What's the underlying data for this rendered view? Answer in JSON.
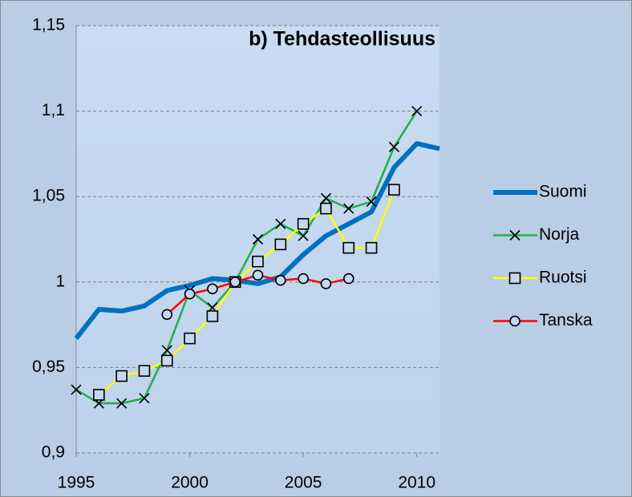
{
  "chart_data": {
    "type": "line",
    "title": "b) Tehdasteollisuus",
    "x": [
      1995,
      1996,
      1997,
      1998,
      1999,
      2000,
      2001,
      2002,
      2003,
      2004,
      2005,
      2006,
      2007,
      2008,
      2009,
      2010,
      2011
    ],
    "series": [
      {
        "name": "Suomi",
        "color": "#0070c0",
        "marker": "none",
        "width": 6,
        "values": [
          0.967,
          0.984,
          0.983,
          0.986,
          0.995,
          0.998,
          1.002,
          1.001,
          0.999,
          1.003,
          1.016,
          1.027,
          1.034,
          1.041,
          1.067,
          1.081,
          1.078
        ]
      },
      {
        "name": "Norja",
        "color": "#1fae4b",
        "marker": "x",
        "width": 2.5,
        "values": [
          0.937,
          0.929,
          0.929,
          0.932,
          0.96,
          0.995,
          0.985,
          1.0,
          1.025,
          1.034,
          1.027,
          1.049,
          1.043,
          1.047,
          1.079,
          1.1,
          null
        ]
      },
      {
        "name": "Ruotsi",
        "color": "#ffff00",
        "marker": "square",
        "width": 2.5,
        "values": [
          null,
          0.934,
          0.945,
          0.948,
          0.954,
          0.967,
          0.98,
          1.0,
          1.012,
          1.022,
          1.034,
          1.043,
          1.02,
          1.02,
          1.054,
          null,
          null
        ]
      },
      {
        "name": "Tanska",
        "color": "#ff0000",
        "marker": "circle",
        "width": 2.5,
        "values": [
          null,
          null,
          null,
          null,
          0.981,
          0.993,
          0.996,
          1.0,
          1.004,
          1.001,
          1.002,
          0.999,
          1.002,
          null,
          null,
          null,
          null
        ]
      }
    ],
    "xlim": [
      1995,
      2011
    ],
    "xticks": [
      1995,
      2000,
      2005,
      2010
    ],
    "ylim": [
      0.9,
      1.15
    ],
    "yticks": [
      {
        "value": 0.9,
        "label": "0,9"
      },
      {
        "value": 0.95,
        "label": "0,95"
      },
      1,
      {
        "value": 1.05,
        "label": "1,05"
      },
      {
        "value": 1.1,
        "label": "1,1"
      },
      {
        "value": 1.15,
        "label": "1,15"
      }
    ],
    "grid": true,
    "legend": "right"
  }
}
